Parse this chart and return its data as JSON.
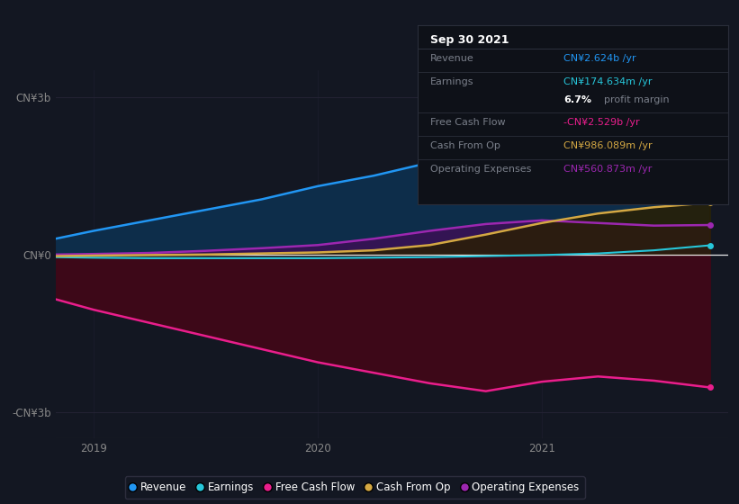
{
  "bg_color": "#131722",
  "plot_bg_color": "#131722",
  "ylim": [
    -3500000000.0,
    3500000000.0
  ],
  "yticks": [
    -3000000000.0,
    0,
    3000000000.0
  ],
  "ytick_labels": [
    "-CN¥3b",
    "CN¥0",
    "CN¥3b"
  ],
  "xlabel_ticks": [
    2019.0,
    2020.0,
    2021.0
  ],
  "xlabel_labels": [
    "2019",
    "2020",
    "2021"
  ],
  "series": {
    "revenue": {
      "color": "#2196f3",
      "fill_color": "#0d2d4a",
      "label": "Revenue",
      "x": [
        2018.83,
        2019.0,
        2019.25,
        2019.5,
        2019.75,
        2020.0,
        2020.25,
        2020.5,
        2020.75,
        2021.0,
        2021.25,
        2021.5,
        2021.75
      ],
      "y": [
        300000000.0,
        450000000.0,
        650000000.0,
        850000000.0,
        1050000000.0,
        1300000000.0,
        1500000000.0,
        1750000000.0,
        2000000000.0,
        2200000000.0,
        2350000000.0,
        2500000000.0,
        2624000000.0
      ]
    },
    "earnings": {
      "color": "#26c6da",
      "fill_color": "#0a2a2a",
      "label": "Earnings",
      "x": [
        2018.83,
        2019.0,
        2019.25,
        2019.5,
        2019.75,
        2020.0,
        2020.25,
        2020.5,
        2020.75,
        2021.0,
        2021.25,
        2021.5,
        2021.75
      ],
      "y": [
        -50000000.0,
        -60000000.0,
        -70000000.0,
        -70000000.0,
        -70000000.0,
        -70000000.0,
        -60000000.0,
        -50000000.0,
        -30000000.0,
        -10000000.0,
        20000000.0,
        80000000.0,
        175000000.0
      ]
    },
    "free_cash_flow": {
      "color": "#e91e8c",
      "fill_color": "#3d0818",
      "label": "Free Cash Flow",
      "x": [
        2018.83,
        2019.0,
        2019.25,
        2019.5,
        2019.75,
        2020.0,
        2020.25,
        2020.5,
        2020.75,
        2021.0,
        2021.25,
        2021.5,
        2021.75
      ],
      "y": [
        -850000000.0,
        -1050000000.0,
        -1300000000.0,
        -1550000000.0,
        -1800000000.0,
        -2050000000.0,
        -2250000000.0,
        -2450000000.0,
        -2600000000.0,
        -2420000000.0,
        -2320000000.0,
        -2400000000.0,
        -2529000000.0
      ]
    },
    "cash_from_op": {
      "color": "#d4a843",
      "fill_color": "#2a1f00",
      "label": "Cash From Op",
      "x": [
        2018.83,
        2019.0,
        2019.25,
        2019.5,
        2019.75,
        2020.0,
        2020.25,
        2020.5,
        2020.75,
        2021.0,
        2021.25,
        2021.5,
        2021.75
      ],
      "y": [
        -30000000.0,
        -20000000.0,
        -10000000.0,
        0.0,
        20000000.0,
        40000000.0,
        80000000.0,
        180000000.0,
        380000000.0,
        600000000.0,
        780000000.0,
        900000000.0,
        986000000.0
      ]
    },
    "operating_expenses": {
      "color": "#9c27b0",
      "fill_color": "#1a0033",
      "label": "Operating Expenses",
      "x": [
        2018.83,
        2019.0,
        2019.25,
        2019.5,
        2019.75,
        2020.0,
        2020.25,
        2020.5,
        2020.75,
        2021.0,
        2021.25,
        2021.5,
        2021.75
      ],
      "y": [
        0.0,
        10000000.0,
        30000000.0,
        70000000.0,
        120000000.0,
        180000000.0,
        300000000.0,
        450000000.0,
        580000000.0,
        650000000.0,
        600000000.0,
        550000000.0,
        561000000.0
      ]
    }
  },
  "info_box": {
    "title": "Sep 30 2021",
    "rows": [
      {
        "label": "Revenue",
        "value": "CN¥2.624b /yr",
        "value_color": "#2196f3"
      },
      {
        "label": "Earnings",
        "value": "CN¥174.634m /yr",
        "value_color": "#26c6da"
      },
      {
        "label": "",
        "value": "6.7% profit margin",
        "value_color": "mixed"
      },
      {
        "label": "Free Cash Flow",
        "value": "-CN¥2.529b /yr",
        "value_color": "#e91e8c"
      },
      {
        "label": "Cash From Op",
        "value": "CN¥986.089m /yr",
        "value_color": "#d4a843"
      },
      {
        "label": "Operating Expenses",
        "value": "CN¥560.873m /yr",
        "value_color": "#9c27b0"
      }
    ]
  },
  "legend": [
    {
      "label": "Revenue",
      "color": "#2196f3"
    },
    {
      "label": "Earnings",
      "color": "#26c6da"
    },
    {
      "label": "Free Cash Flow",
      "color": "#e91e8c"
    },
    {
      "label": "Cash From Op",
      "color": "#d4a843"
    },
    {
      "label": "Operating Expenses",
      "color": "#9c27b0"
    }
  ]
}
